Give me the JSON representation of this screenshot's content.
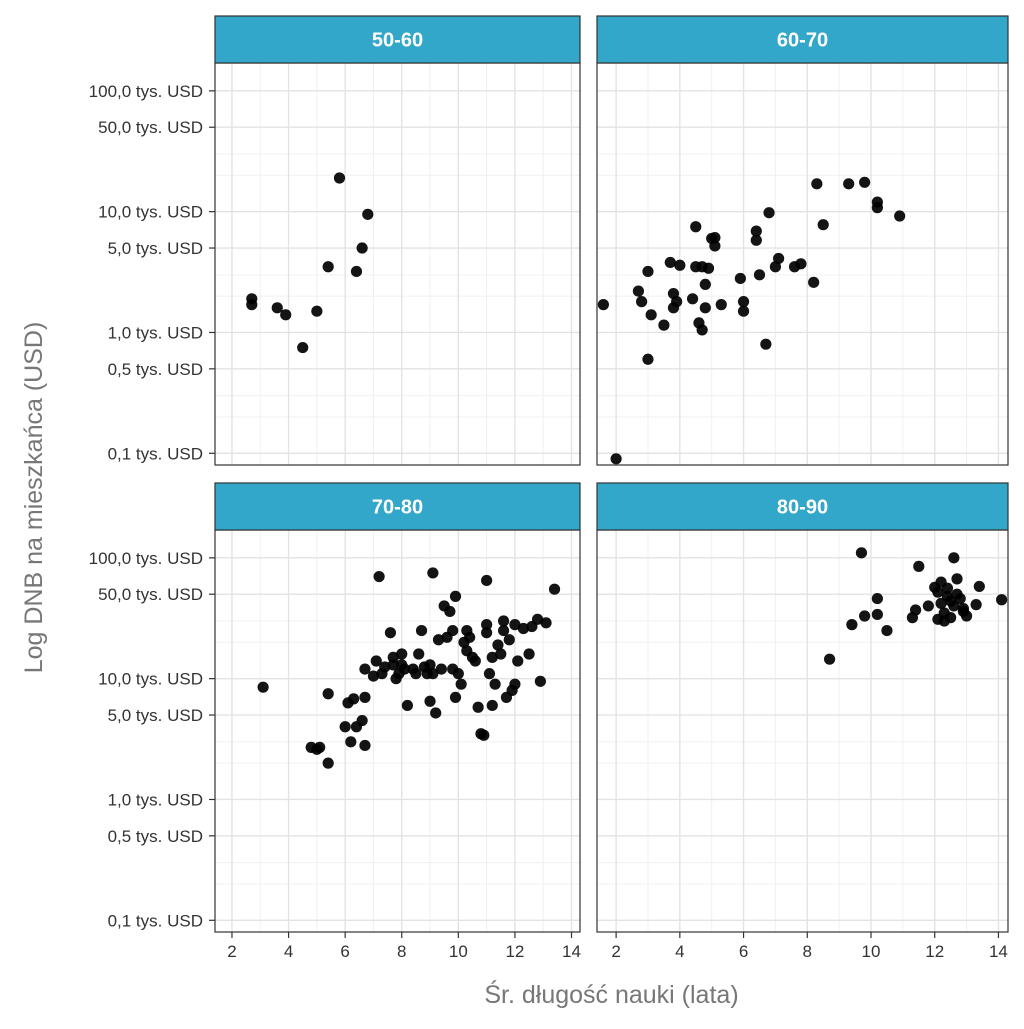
{
  "chart_data": {
    "type": "scatter",
    "xlabel": "Śr. długość nauki (lata)",
    "ylabel": "Log DNB na mieszkańca (USD)",
    "y_scale": "log10",
    "xlim": [
      1.4,
      14.3
    ],
    "ylim": [
      0.08,
      170
    ],
    "x_ticks": [
      2,
      4,
      6,
      8,
      10,
      12,
      14
    ],
    "y_ticks": [
      {
        "value": 0.1,
        "label": "0,1 tys. USD"
      },
      {
        "value": 0.5,
        "label": "0,5 tys. USD"
      },
      {
        "value": 1,
        "label": "1,0 tys. USD"
      },
      {
        "value": 5,
        "label": "5,0 tys. USD"
      },
      {
        "value": 10,
        "label": "10,0 tys. USD"
      },
      {
        "value": 50,
        "label": "50,0 tys. USD"
      },
      {
        "value": 100,
        "label": "100,0 tys. USD"
      }
    ],
    "grid": true,
    "strip_color": "#33a7c9",
    "point_color": "#000000",
    "panels": [
      {
        "label": "50-60",
        "points": [
          [
            2.7,
            1.9
          ],
          [
            2.7,
            1.7
          ],
          [
            3.6,
            1.6
          ],
          [
            3.9,
            1.4
          ],
          [
            4.5,
            0.75
          ],
          [
            5.0,
            1.5
          ],
          [
            5.4,
            3.5
          ],
          [
            5.8,
            19
          ],
          [
            6.4,
            3.2
          ],
          [
            6.6,
            5.0
          ],
          [
            6.8,
            9.5
          ]
        ]
      },
      {
        "label": "60-70",
        "points": [
          [
            2.0,
            0.09
          ],
          [
            1.6,
            1.7
          ],
          [
            2.7,
            2.2
          ],
          [
            2.8,
            1.8
          ],
          [
            3.0,
            3.2
          ],
          [
            3.0,
            0.6
          ],
          [
            3.1,
            1.4
          ],
          [
            3.5,
            1.15
          ],
          [
            3.7,
            3.8
          ],
          [
            3.8,
            1.6
          ],
          [
            3.8,
            2.1
          ],
          [
            3.9,
            1.8
          ],
          [
            4.0,
            3.6
          ],
          [
            4.4,
            1.9
          ],
          [
            4.5,
            3.5
          ],
          [
            4.5,
            7.5
          ],
          [
            4.6,
            1.2
          ],
          [
            4.7,
            1.05
          ],
          [
            4.7,
            3.5
          ],
          [
            4.8,
            1.6
          ],
          [
            4.8,
            2.5
          ],
          [
            4.9,
            3.4
          ],
          [
            5.0,
            6.0
          ],
          [
            5.1,
            5.2
          ],
          [
            5.1,
            6.1
          ],
          [
            5.3,
            1.7
          ],
          [
            5.9,
            2.8
          ],
          [
            6.0,
            1.5
          ],
          [
            6.0,
            1.8
          ],
          [
            6.4,
            5.8
          ],
          [
            6.4,
            6.9
          ],
          [
            6.5,
            3.0
          ],
          [
            6.7,
            0.8
          ],
          [
            6.8,
            9.8
          ],
          [
            7.0,
            3.5
          ],
          [
            7.1,
            4.1
          ],
          [
            7.6,
            3.5
          ],
          [
            7.8,
            3.7
          ],
          [
            8.2,
            2.6
          ],
          [
            8.3,
            17
          ],
          [
            8.5,
            7.8
          ],
          [
            9.3,
            17
          ],
          [
            9.8,
            17.5
          ],
          [
            10.2,
            12
          ],
          [
            10.2,
            10.8
          ],
          [
            10.9,
            9.2
          ]
        ]
      },
      {
        "label": "70-80",
        "points": [
          [
            3.1,
            8.5
          ],
          [
            4.8,
            2.7
          ],
          [
            5.0,
            2.6
          ],
          [
            5.1,
            2.7
          ],
          [
            5.4,
            2.0
          ],
          [
            5.4,
            7.5
          ],
          [
            6.0,
            4.0
          ],
          [
            6.1,
            6.3
          ],
          [
            6.2,
            3.0
          ],
          [
            6.3,
            6.8
          ],
          [
            6.4,
            4.0
          ],
          [
            6.6,
            4.5
          ],
          [
            6.7,
            2.8
          ],
          [
            6.7,
            7.0
          ],
          [
            6.7,
            12
          ],
          [
            7.0,
            10.5
          ],
          [
            7.1,
            14
          ],
          [
            7.2,
            70
          ],
          [
            7.3,
            11
          ],
          [
            7.4,
            12.5
          ],
          [
            7.6,
            24
          ],
          [
            7.7,
            13
          ],
          [
            7.7,
            15
          ],
          [
            7.8,
            10
          ],
          [
            7.9,
            11
          ],
          [
            8.0,
            13
          ],
          [
            8.0,
            16
          ],
          [
            8.1,
            12
          ],
          [
            8.2,
            6.0
          ],
          [
            8.4,
            12
          ],
          [
            8.5,
            11
          ],
          [
            8.6,
            16
          ],
          [
            8.7,
            25
          ],
          [
            8.8,
            12.5
          ],
          [
            8.9,
            11
          ],
          [
            9.0,
            13
          ],
          [
            9.0,
            6.5
          ],
          [
            9.1,
            11
          ],
          [
            9.1,
            75
          ],
          [
            9.2,
            5.2
          ],
          [
            9.3,
            21
          ],
          [
            9.4,
            12
          ],
          [
            9.5,
            40
          ],
          [
            9.6,
            22
          ],
          [
            9.7,
            36
          ],
          [
            9.8,
            25
          ],
          [
            9.8,
            12
          ],
          [
            9.9,
            7.0
          ],
          [
            9.9,
            48
          ],
          [
            10.0,
            11
          ],
          [
            10.1,
            9
          ],
          [
            10.2,
            20
          ],
          [
            10.3,
            25
          ],
          [
            10.3,
            17
          ],
          [
            10.4,
            22
          ],
          [
            10.5,
            15
          ],
          [
            10.6,
            14
          ],
          [
            10.7,
            5.8
          ],
          [
            10.8,
            3.5
          ],
          [
            10.9,
            3.4
          ],
          [
            11.0,
            28
          ],
          [
            11.0,
            24
          ],
          [
            11.0,
            65
          ],
          [
            11.1,
            11
          ],
          [
            11.2,
            6
          ],
          [
            11.2,
            15
          ],
          [
            11.3,
            9
          ],
          [
            11.4,
            19
          ],
          [
            11.5,
            16
          ],
          [
            11.6,
            25
          ],
          [
            11.6,
            30
          ],
          [
            11.7,
            7
          ],
          [
            11.8,
            21
          ],
          [
            11.9,
            8
          ],
          [
            12.0,
            9
          ],
          [
            12.0,
            28
          ],
          [
            12.1,
            14
          ],
          [
            12.3,
            26
          ],
          [
            12.5,
            16
          ],
          [
            12.6,
            27
          ],
          [
            12.8,
            31
          ],
          [
            12.9,
            9.5
          ],
          [
            13.1,
            29
          ],
          [
            13.4,
            55
          ]
        ]
      },
      {
        "label": "80-90",
        "points": [
          [
            8.7,
            14.5
          ],
          [
            9.4,
            28
          ],
          [
            9.7,
            110
          ],
          [
            9.8,
            33
          ],
          [
            10.2,
            46
          ],
          [
            10.2,
            34
          ],
          [
            10.5,
            25
          ],
          [
            11.3,
            32
          ],
          [
            11.4,
            37
          ],
          [
            11.5,
            85
          ],
          [
            11.8,
            40
          ],
          [
            12.0,
            57
          ],
          [
            12.1,
            52
          ],
          [
            12.1,
            31
          ],
          [
            12.2,
            42
          ],
          [
            12.2,
            63
          ],
          [
            12.3,
            35
          ],
          [
            12.3,
            30
          ],
          [
            12.4,
            48
          ],
          [
            12.4,
            56
          ],
          [
            12.5,
            44
          ],
          [
            12.5,
            32
          ],
          [
            12.6,
            100
          ],
          [
            12.6,
            40
          ],
          [
            12.7,
            50
          ],
          [
            12.7,
            67
          ],
          [
            12.8,
            46
          ],
          [
            12.9,
            38
          ],
          [
            12.9,
            36
          ],
          [
            13.0,
            33
          ],
          [
            13.3,
            41
          ],
          [
            13.4,
            58
          ],
          [
            14.1,
            45
          ]
        ]
      }
    ]
  }
}
